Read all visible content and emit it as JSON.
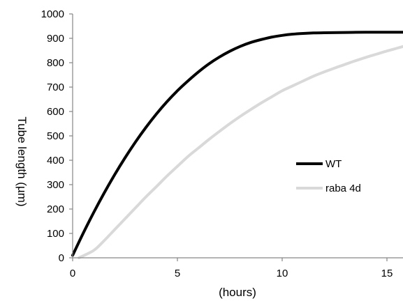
{
  "chart_data": {
    "type": "line",
    "title": "",
    "xlabel": "(hours)",
    "ylabel": "Tube length (µm)",
    "xlim": [
      0,
      16
    ],
    "ylim": [
      0,
      1000
    ],
    "x_ticks": [
      "0",
      "5",
      "10",
      "15"
    ],
    "y_ticks": [
      "0",
      "100",
      "200",
      "300",
      "400",
      "500",
      "600",
      "700",
      "800",
      "900",
      "1000"
    ],
    "grid": false,
    "legend": "center-right",
    "series": [
      {
        "name": "WT",
        "color": "#000000",
        "x": [
          0,
          0.5,
          1,
          1.5,
          2,
          2.5,
          3,
          3.5,
          4,
          4.5,
          5,
          5.5,
          6,
          6.5,
          7,
          7.5,
          8,
          8.5,
          9,
          9.5,
          10,
          10.5,
          11,
          11.5,
          12,
          13,
          14,
          15,
          16
        ],
        "y": [
          10,
          100,
          185,
          265,
          340,
          410,
          475,
          535,
          590,
          640,
          685,
          725,
          762,
          795,
          823,
          847,
          867,
          883,
          895,
          905,
          912,
          917,
          920,
          922,
          923,
          924,
          925,
          925,
          925
        ]
      },
      {
        "name": "raba 4d",
        "color": "#d9d9d9",
        "x": [
          0.3,
          1,
          1.5,
          2,
          2.5,
          3,
          3.5,
          4,
          4.5,
          5,
          5.5,
          6,
          6.5,
          7,
          7.5,
          8,
          8.5,
          9,
          9.5,
          10,
          10.5,
          11,
          11.5,
          12,
          12.5,
          13,
          13.5,
          14,
          14.5,
          15,
          15.5,
          16
        ],
        "y": [
          0,
          30,
          70,
          115,
          160,
          205,
          250,
          292,
          335,
          375,
          415,
          450,
          485,
          518,
          550,
          580,
          608,
          635,
          660,
          685,
          705,
          725,
          745,
          762,
          778,
          793,
          808,
          822,
          835,
          848,
          860,
          872
        ]
      }
    ]
  }
}
